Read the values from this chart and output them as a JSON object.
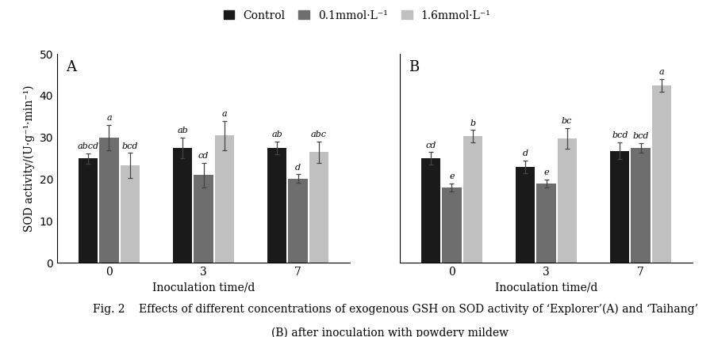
{
  "panel_A": {
    "label": "A",
    "groups": [
      0,
      3,
      7
    ],
    "control": {
      "values": [
        25.0,
        27.5,
        27.5
      ],
      "errors": [
        1.2,
        2.5,
        1.5
      ],
      "letters": [
        "abcd",
        "ab",
        "ab"
      ]
    },
    "low": {
      "values": [
        30.0,
        21.0,
        20.2
      ],
      "errors": [
        3.0,
        3.0,
        1.0
      ],
      "letters": [
        "a",
        "cd",
        "d"
      ]
    },
    "high": {
      "values": [
        23.3,
        30.5,
        26.5
      ],
      "errors": [
        3.0,
        3.5,
        2.5
      ],
      "letters": [
        "bcd",
        "a",
        "abc"
      ]
    }
  },
  "panel_B": {
    "label": "B",
    "groups": [
      0,
      3,
      7
    ],
    "control": {
      "values": [
        25.0,
        23.0,
        26.8
      ],
      "errors": [
        1.5,
        1.5,
        2.0
      ],
      "letters": [
        "cd",
        "d",
        "bcd"
      ]
    },
    "low": {
      "values": [
        18.0,
        19.0,
        27.5
      ],
      "errors": [
        1.0,
        1.0,
        1.2
      ],
      "letters": [
        "e",
        "e",
        "bcd"
      ]
    },
    "high": {
      "values": [
        30.3,
        29.8,
        42.5
      ],
      "errors": [
        1.5,
        2.5,
        1.5
      ],
      "letters": [
        "b",
        "bc",
        "a"
      ]
    }
  },
  "colors": {
    "control": "#1a1a1a",
    "low": "#6e6e6e",
    "high": "#c0c0c0"
  },
  "ylim": [
    0,
    50
  ],
  "yticks": [
    0,
    10,
    20,
    30,
    40,
    50
  ],
  "ylabel": "SOD activity/(U·g⁻¹·min⁻¹)",
  "xlabel": "Inoculation time/d",
  "legend_labels": [
    "Control",
    "0.1mmol·L⁻¹",
    "1.6mmol·L⁻¹"
  ],
  "caption_line1": "Fig. 2    Effects of different concentrations of exogenous GSH on SOD activity of ‘Explorer’(A) and ‘Taihang’",
  "caption_line2": "(B) after inoculation with powdery mildew",
  "bar_width": 0.22,
  "letter_fontsize": 8,
  "axis_fontsize": 10,
  "legend_fontsize": 10,
  "caption_fontsize": 10
}
